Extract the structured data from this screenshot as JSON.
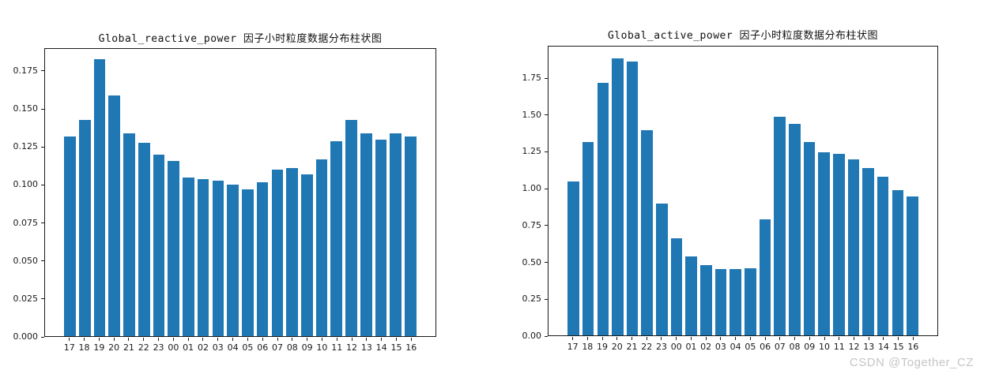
{
  "figure": {
    "watermark": "CSDN @Together_CZ",
    "background": "#ffffff"
  },
  "colors": {
    "bar": "#1f77b4",
    "axis": "#1a1a1a",
    "watermark_text": "#c6c6c6"
  },
  "chart_data": [
    {
      "type": "bar",
      "title": "Global_reactive_power 因子小时粒度数据分布柱状图",
      "xlabel": "",
      "ylabel": "",
      "categories": [
        "17",
        "18",
        "19",
        "20",
        "21",
        "22",
        "23",
        "00",
        "01",
        "02",
        "03",
        "04",
        "05",
        "06",
        "07",
        "08",
        "09",
        "10",
        "11",
        "12",
        "13",
        "14",
        "15",
        "16"
      ],
      "values": [
        0.132,
        0.143,
        0.183,
        0.159,
        0.134,
        0.128,
        0.12,
        0.116,
        0.105,
        0.104,
        0.103,
        0.1,
        0.097,
        0.102,
        0.11,
        0.111,
        0.107,
        0.117,
        0.129,
        0.143,
        0.134,
        0.13,
        0.134,
        0.132
      ],
      "ylim": [
        0,
        0.19
      ],
      "yticks": [
        0,
        0.025,
        0.05,
        0.075,
        0.1,
        0.125,
        0.15,
        0.175
      ],
      "ytick_labels": [
        "0.000",
        "0.025",
        "0.050",
        "0.075",
        "0.100",
        "0.125",
        "0.150",
        "0.175"
      ],
      "bar_color": "#1f77b4",
      "grid": false,
      "legend": null
    },
    {
      "type": "bar",
      "title": "Global_active_power 因子小时粒度数据分布柱状图",
      "xlabel": "",
      "ylabel": "",
      "categories": [
        "17",
        "18",
        "19",
        "20",
        "21",
        "22",
        "23",
        "00",
        "01",
        "02",
        "03",
        "04",
        "05",
        "06",
        "07",
        "08",
        "09",
        "10",
        "11",
        "12",
        "13",
        "14",
        "15",
        "16"
      ],
      "values": [
        1.05,
        1.32,
        1.72,
        1.89,
        1.87,
        1.4,
        0.9,
        0.66,
        0.54,
        0.48,
        0.45,
        0.45,
        0.46,
        0.79,
        1.49,
        1.44,
        1.32,
        1.25,
        1.24,
        1.2,
        1.14,
        1.08,
        0.99,
        0.95
      ],
      "ylim": [
        0,
        1.97
      ],
      "yticks": [
        0,
        0.25,
        0.5,
        0.75,
        1.0,
        1.25,
        1.5,
        1.75
      ],
      "ytick_labels": [
        "0.00",
        "0.25",
        "0.50",
        "0.75",
        "1.00",
        "1.25",
        "1.50",
        "1.75"
      ],
      "bar_color": "#1f77b4",
      "grid": false,
      "legend": null
    }
  ]
}
